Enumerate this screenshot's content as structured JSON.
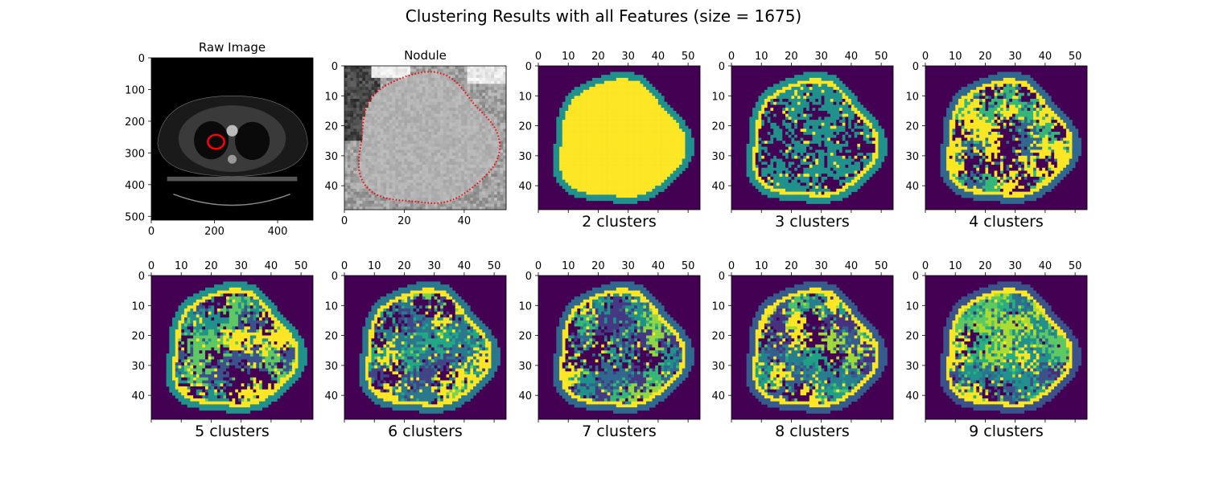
{
  "figure": {
    "title": "Clustering Results with all Features (size = 1675)"
  },
  "chart_data": [
    {
      "type": "heatmap",
      "title": "Raw Image",
      "xticks": [
        0,
        200,
        400
      ],
      "yticks": [
        0,
        100,
        200,
        300,
        400,
        500
      ],
      "xlim": [
        0,
        512
      ],
      "ylim": [
        0,
        512
      ],
      "colormap": "gray",
      "annotation": "nodule contour in red"
    },
    {
      "type": "heatmap",
      "title": "Nodule",
      "xticks": [
        0,
        20,
        40
      ],
      "yticks": [
        0,
        10,
        20,
        30,
        40
      ],
      "xlim": [
        0,
        54
      ],
      "ylim": [
        0,
        48
      ],
      "colormap": "gray",
      "annotation": "nodule contour dotted red"
    },
    {
      "type": "heatmap",
      "clusters": 2,
      "xlabel": "2 clusters",
      "xticks": [
        0,
        10,
        20,
        30,
        40,
        50
      ],
      "yticks": [
        0,
        10,
        20,
        30,
        40
      ],
      "xlim": [
        0,
        54
      ],
      "ylim": [
        0,
        48
      ],
      "colormap": "viridis"
    },
    {
      "type": "heatmap",
      "clusters": 3,
      "xlabel": "3 clusters",
      "xticks": [
        0,
        10,
        20,
        30,
        40,
        50
      ],
      "yticks": [
        0,
        10,
        20,
        30,
        40
      ],
      "xlim": [
        0,
        54
      ],
      "ylim": [
        0,
        48
      ],
      "colormap": "viridis"
    },
    {
      "type": "heatmap",
      "clusters": 4,
      "xlabel": "4 clusters",
      "xticks": [
        0,
        10,
        20,
        30,
        40,
        50
      ],
      "yticks": [
        0,
        10,
        20,
        30,
        40
      ],
      "xlim": [
        0,
        54
      ],
      "ylim": [
        0,
        48
      ],
      "colormap": "viridis"
    },
    {
      "type": "heatmap",
      "clusters": 5,
      "xlabel": "5 clusters",
      "xticks": [
        0,
        10,
        20,
        30,
        40,
        50
      ],
      "yticks": [
        0,
        10,
        20,
        30,
        40
      ],
      "xlim": [
        0,
        54
      ],
      "ylim": [
        0,
        48
      ],
      "colormap": "viridis"
    },
    {
      "type": "heatmap",
      "clusters": 6,
      "xlabel": "6 clusters",
      "xticks": [
        0,
        10,
        20,
        30,
        40,
        50
      ],
      "yticks": [
        0,
        10,
        20,
        30,
        40
      ],
      "xlim": [
        0,
        54
      ],
      "ylim": [
        0,
        48
      ],
      "colormap": "viridis"
    },
    {
      "type": "heatmap",
      "clusters": 7,
      "xlabel": "7 clusters",
      "xticks": [
        0,
        10,
        20,
        30,
        40,
        50
      ],
      "yticks": [
        0,
        10,
        20,
        30,
        40
      ],
      "xlim": [
        0,
        54
      ],
      "ylim": [
        0,
        48
      ],
      "colormap": "viridis"
    },
    {
      "type": "heatmap",
      "clusters": 8,
      "xlabel": "8 clusters",
      "xticks": [
        0,
        10,
        20,
        30,
        40,
        50
      ],
      "yticks": [
        0,
        10,
        20,
        30,
        40
      ],
      "xlim": [
        0,
        54
      ],
      "ylim": [
        0,
        48
      ],
      "colormap": "viridis"
    },
    {
      "type": "heatmap",
      "clusters": 9,
      "xlabel": "9 clusters",
      "xticks": [
        0,
        10,
        20,
        30,
        40,
        50
      ],
      "yticks": [
        0,
        10,
        20,
        30,
        40
      ],
      "xlim": [
        0,
        54
      ],
      "ylim": [
        0,
        48
      ],
      "colormap": "viridis"
    }
  ]
}
